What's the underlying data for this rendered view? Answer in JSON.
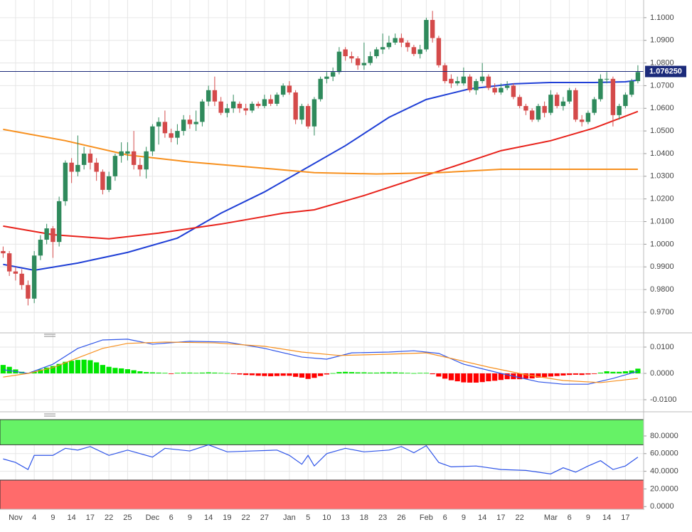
{
  "chart_data": [
    {
      "type": "candlestick",
      "categories": [
        null,
        null,
        "Nov",
        null,
        null,
        "4",
        null,
        null,
        "9",
        null,
        null,
        "14",
        null,
        null,
        "17",
        null,
        null,
        "22",
        null,
        null,
        "25",
        null,
        null,
        null,
        "Dec",
        null,
        null,
        "6",
        null,
        null,
        "9",
        null,
        null,
        "14",
        null,
        null,
        "19",
        null,
        null,
        "22",
        null,
        null,
        "27",
        null,
        null,
        null,
        "Jan",
        null,
        null,
        "5",
        null,
        null,
        "10",
        null,
        null,
        "13",
        null,
        null,
        "18",
        null,
        null,
        "23",
        null,
        null,
        "26",
        null,
        null,
        null,
        "Feb",
        null,
        null,
        "6",
        null,
        null,
        "9",
        null,
        null,
        "14",
        null,
        null,
        "17",
        null,
        null,
        "22",
        null,
        null,
        null,
        null,
        "Mar",
        null,
        null,
        "6",
        null,
        null,
        "9",
        null,
        null,
        "14",
        null,
        null,
        "17",
        null,
        null
      ],
      "open": [
        0.997,
        0.996,
        0.988,
        0.987,
        0.982,
        0.976,
        0.995,
        1.002,
        1.007,
        1.001,
        1.019,
        1.036,
        1.032,
        1.035,
        1.04,
        1.036,
        1.032,
        1.024,
        1.03,
        1.039,
        1.04,
        1.041,
        1.035,
        1.033,
        1.041,
        1.052,
        1.054,
        1.049,
        1.047,
        1.05,
        1.055,
        1.053,
        1.054,
        1.063,
        1.068,
        1.063,
        1.058,
        1.06,
        1.062,
        1.06,
        1.059,
        1.062,
        1.061,
        1.064,
        1.062,
        1.066,
        1.07,
        1.067,
        1.055,
        1.061,
        1.052,
        1.064,
        1.073,
        1.074,
        1.076,
        1.086,
        1.083,
        1.082,
        1.079,
        1.08,
        1.083,
        1.086,
        1.087,
        1.089,
        1.091,
        1.089,
        1.087,
        1.084,
        1.086,
        1.099,
        1.091,
        1.079,
        1.073,
        1.071,
        1.071,
        1.074,
        1.068,
        1.072,
        1.074,
        1.069,
        1.067,
        1.069,
        1.07,
        1.065,
        1.061,
        1.059,
        1.055,
        1.061,
        1.058,
        1.066,
        1.061,
        1.063,
        1.068,
        1.055,
        1.054,
        1.058,
        1.064,
        1.073,
        1.073,
        1.057,
        1.061,
        1.066,
        1.072
      ],
      "high": [
        0.999,
        0.997,
        0.99,
        0.989,
        0.984,
        0.997,
        1.004,
        1.009,
        1.008,
        1.021,
        1.037,
        1.038,
        1.048,
        1.043,
        1.042,
        1.038,
        1.033,
        1.032,
        1.04,
        1.045,
        1.045,
        1.05,
        1.038,
        1.043,
        1.053,
        1.056,
        1.059,
        1.051,
        1.053,
        1.057,
        1.057,
        1.059,
        1.064,
        1.07,
        1.074,
        1.065,
        1.062,
        1.066,
        1.063,
        1.062,
        1.063,
        1.063,
        1.066,
        1.066,
        1.067,
        1.071,
        1.072,
        1.068,
        1.062,
        1.062,
        1.065,
        1.074,
        1.076,
        1.078,
        1.087,
        1.087,
        1.085,
        1.083,
        1.089,
        1.085,
        1.087,
        1.093,
        1.092,
        1.093,
        1.093,
        1.09,
        1.088,
        1.088,
        1.1,
        1.103,
        1.092,
        1.08,
        1.075,
        1.074,
        1.078,
        1.075,
        1.073,
        1.08,
        1.075,
        1.071,
        1.071,
        1.072,
        1.071,
        1.066,
        1.062,
        1.06,
        1.062,
        1.063,
        1.068,
        1.067,
        1.065,
        1.069,
        1.069,
        1.057,
        1.059,
        1.065,
        1.075,
        1.076,
        1.074,
        1.062,
        1.067,
        1.073,
        1.079
      ],
      "low": [
        0.994,
        0.986,
        0.984,
        0.98,
        0.973,
        0.974,
        0.993,
        1.0,
        0.994,
        0.999,
        1.017,
        1.027,
        1.03,
        1.033,
        1.033,
        1.028,
        1.022,
        1.023,
        1.028,
        1.036,
        1.037,
        1.033,
        1.03,
        1.029,
        1.039,
        1.044,
        1.047,
        1.045,
        1.044,
        1.048,
        1.051,
        1.05,
        1.052,
        1.061,
        1.061,
        1.057,
        1.056,
        1.058,
        1.058,
        1.057,
        1.058,
        1.06,
        1.06,
        1.061,
        1.061,
        1.065,
        1.066,
        1.053,
        1.053,
        1.051,
        1.048,
        1.063,
        1.071,
        1.072,
        1.075,
        1.081,
        1.08,
        1.077,
        1.077,
        1.079,
        1.082,
        1.084,
        1.086,
        1.088,
        1.087,
        1.085,
        1.083,
        1.082,
        1.085,
        1.089,
        1.078,
        1.071,
        1.069,
        1.07,
        1.07,
        1.067,
        1.066,
        1.071,
        1.068,
        1.066,
        1.066,
        1.068,
        1.064,
        1.06,
        1.057,
        1.054,
        1.054,
        1.056,
        1.057,
        1.06,
        1.059,
        1.062,
        1.054,
        1.052,
        1.053,
        1.057,
        1.063,
        1.071,
        1.052,
        1.055,
        1.06,
        1.065,
        1.071
      ],
      "close": [
        0.996,
        0.988,
        0.987,
        0.982,
        0.976,
        0.995,
        1.002,
        1.007,
        1.001,
        1.019,
        1.036,
        1.032,
        1.035,
        1.04,
        1.036,
        1.032,
        1.024,
        1.03,
        1.039,
        1.041,
        1.041,
        1.035,
        1.033,
        1.041,
        1.052,
        1.054,
        1.049,
        1.047,
        1.05,
        1.055,
        1.053,
        1.054,
        1.063,
        1.068,
        1.063,
        1.058,
        1.06,
        1.063,
        1.06,
        1.059,
        1.062,
        1.061,
        1.064,
        1.062,
        1.066,
        1.07,
        1.067,
        1.055,
        1.061,
        1.052,
        1.064,
        1.073,
        1.074,
        1.076,
        1.085,
        1.083,
        1.082,
        1.079,
        1.08,
        1.083,
        1.086,
        1.087,
        1.089,
        1.091,
        1.089,
        1.087,
        1.084,
        1.086,
        1.099,
        1.091,
        1.079,
        1.072,
        1.071,
        1.072,
        1.074,
        1.068,
        1.072,
        1.074,
        1.069,
        1.067,
        1.069,
        1.07,
        1.065,
        1.061,
        1.059,
        1.055,
        1.061,
        1.058,
        1.066,
        1.061,
        1.063,
        1.068,
        1.055,
        1.054,
        1.058,
        1.064,
        1.073,
        1.073,
        1.057,
        1.061,
        1.066,
        1.072,
        1.076
      ],
      "up_color": "#2f8a5c",
      "down_color": "#d44a4a",
      "series": [
        {
          "color": "#1f3fd6",
          "x": [
            0,
            5,
            12,
            20,
            28,
            35,
            42,
            48,
            55,
            62,
            68,
            75,
            82,
            88,
            95,
            100,
            102
          ],
          "values": [
            0.9911,
            0.9885,
            0.9917,
            0.9964,
            1.0027,
            1.0137,
            1.0231,
            1.0325,
            1.0435,
            1.056,
            1.0639,
            1.0686,
            1.0708,
            1.0714,
            1.0714,
            1.0717,
            1.0724
          ]
        },
        {
          "color": "#e8221b",
          "x": [
            0,
            8,
            17,
            25,
            35,
            45,
            50,
            58,
            66,
            72,
            80,
            88,
            95,
            102
          ],
          "values": [
            1.008,
            1.0042,
            1.0024,
            1.0049,
            1.0089,
            1.0137,
            1.0152,
            1.0215,
            1.0287,
            1.034,
            1.0413,
            1.0457,
            1.0513,
            1.0586
          ]
        },
        {
          "color": "#f7901e",
          "x": [
            0,
            10,
            20,
            30,
            40,
            50,
            60,
            70,
            80,
            90,
            102
          ],
          "values": [
            1.0507,
            1.0457,
            1.0394,
            1.0363,
            1.034,
            1.0316,
            1.031,
            1.0316,
            1.0331,
            1.0331,
            1.0331
          ]
        }
      ],
      "last_price": {
        "value": 1.07625,
        "label": "1.076250"
      },
      "last_price_color": "#1b2a7a",
      "ylim": [
        0.9612,
        1.1078
      ],
      "yticks": [
        {
          "value": 0.97,
          "label": "0.9700"
        },
        {
          "value": 0.98,
          "label": "0.9800"
        },
        {
          "value": 0.99,
          "label": "0.9900"
        },
        {
          "value": 1.0,
          "label": "1.0000"
        },
        {
          "value": 1.01,
          "label": "1.0100"
        },
        {
          "value": 1.02,
          "label": "1.0200"
        },
        {
          "value": 1.03,
          "label": "1.0300"
        },
        {
          "value": 1.04,
          "label": "1.0400"
        },
        {
          "value": 1.05,
          "label": "1.0500"
        },
        {
          "value": 1.06,
          "label": "1.0600"
        },
        {
          "value": 1.07,
          "label": "1.0700"
        },
        {
          "value": 1.08,
          "label": "1.0800"
        },
        {
          "value": 1.09,
          "label": "1.0900"
        },
        {
          "value": 1.1,
          "label": "1.1000"
        }
      ],
      "grid": true
    },
    {
      "type": "macd",
      "values": [
        0.0032,
        0.0025,
        0.0015,
        0.0006,
        0.0002,
        0.0008,
        0.0015,
        0.0022,
        0.0028,
        0.0036,
        0.0044,
        0.0048,
        0.0051,
        0.0052,
        0.005,
        0.0042,
        0.0032,
        0.0025,
        0.0021,
        0.0019,
        0.0016,
        0.0012,
        0.0008,
        0.0005,
        0.0004,
        0.0003,
        0.0002,
        -0.0002,
        0.0002,
        0.0003,
        0.0003,
        0.0002,
        0.0003,
        0.0004,
        0.0003,
        0.0002,
        0.0001,
        -0.0002,
        -0.0004,
        -0.0006,
        -0.0007,
        -0.0009,
        -0.001,
        -0.0011,
        -0.001,
        -0.0009,
        -0.0009,
        -0.0013,
        -0.0016,
        -0.0021,
        -0.0017,
        -0.001,
        -0.0004,
        0.0001,
        0.0005,
        0.0006,
        0.0005,
        0.0004,
        0.0004,
        0.0003,
        0.0003,
        0.0004,
        0.0004,
        0.0004,
        0.0003,
        0.0002,
        0.0001,
        0.0002,
        0.0002,
        -0.0003,
        -0.0012,
        -0.002,
        -0.0026,
        -0.003,
        -0.0034,
        -0.0035,
        -0.0035,
        -0.0033,
        -0.003,
        -0.0028,
        -0.0025,
        -0.0022,
        -0.0022,
        -0.0022,
        -0.002,
        -0.0019,
        -0.0016,
        -0.0014,
        -0.0012,
        -0.001,
        -0.0008,
        -0.0006,
        -0.0005,
        -0.0006,
        -0.0004,
        -0.0001,
        0.0003,
        0.0008,
        0.0006,
        0.0006,
        0.0008,
        0.0011,
        0.0018
      ],
      "up_color": "#00e600",
      "down_color": "#ff0000",
      "series": [
        {
          "color": "#2f55e8",
          "x": [
            0,
            4,
            8,
            12,
            16,
            20,
            24,
            30,
            36,
            42,
            48,
            52,
            56,
            62,
            66,
            70,
            74,
            80,
            86,
            90,
            94,
            98,
            102
          ],
          "values": [
            0.0014,
            0,
            0.0035,
            0.0095,
            0.0127,
            0.013,
            0.0111,
            0.0122,
            0.0119,
            0.0095,
            0.0062,
            0.0054,
            0.0078,
            0.0081,
            0.0086,
            0.0076,
            0.0035,
            0,
            -0.0032,
            -0.0041,
            -0.0041,
            -0.0019,
            0.0008
          ]
        },
        {
          "color": "#f7901e",
          "x": [
            0,
            4,
            8,
            12,
            16,
            20,
            26,
            34,
            42,
            48,
            54,
            62,
            68,
            72,
            78,
            84,
            90,
            96,
            102
          ],
          "values": [
            -0.0014,
            0,
            0.0022,
            0.0059,
            0.0095,
            0.0114,
            0.0119,
            0.0116,
            0.0103,
            0.0081,
            0.0068,
            0.0073,
            0.0078,
            0.0057,
            0.0024,
            -0.0005,
            -0.0027,
            -0.0035,
            -0.0019
          ]
        }
      ],
      "ylim": [
        -0.01432,
        0.01486
      ],
      "yticks": [
        {
          "value": -0.01,
          "label": "-0.0100"
        },
        {
          "value": 0,
          "label": "0.0000"
        },
        {
          "value": 0.01,
          "label": "0.0100"
        }
      ],
      "grid": true
    },
    {
      "type": "rsi",
      "overbought": 70,
      "oversold": 30,
      "overbought_color": "#66f266",
      "oversold_color": "#ff6b6b",
      "series": [
        {
          "color": "#2f55e8",
          "x": [
            0,
            2,
            4,
            5,
            8,
            10,
            12,
            14,
            17,
            20,
            24,
            26,
            30,
            33,
            36,
            40,
            44,
            46,
            48,
            49,
            50,
            52,
            55,
            58,
            62,
            64,
            66,
            68,
            70,
            72,
            76,
            80,
            84,
            88,
            90,
            92,
            94,
            96,
            98,
            100,
            102
          ],
          "values": [
            54,
            50,
            42,
            58,
            58,
            66,
            64,
            68,
            58,
            64,
            56,
            66,
            63,
            70,
            62,
            63,
            64,
            58,
            48,
            58,
            46,
            60,
            66,
            62,
            64,
            68,
            61,
            69,
            50,
            45,
            46,
            42,
            41,
            37,
            44,
            39,
            46,
            52,
            42,
            46,
            56
          ]
        }
      ],
      "ylim": [
        -3,
        98.5
      ],
      "yticks": [
        {
          "value": 0,
          "label": "0.0000"
        },
        {
          "value": 20,
          "label": "20.0000"
        },
        {
          "value": 40,
          "label": "40.0000"
        },
        {
          "value": 60,
          "label": "60.0000"
        },
        {
          "value": 80,
          "label": "80.0000"
        }
      ],
      "grid": true
    }
  ]
}
